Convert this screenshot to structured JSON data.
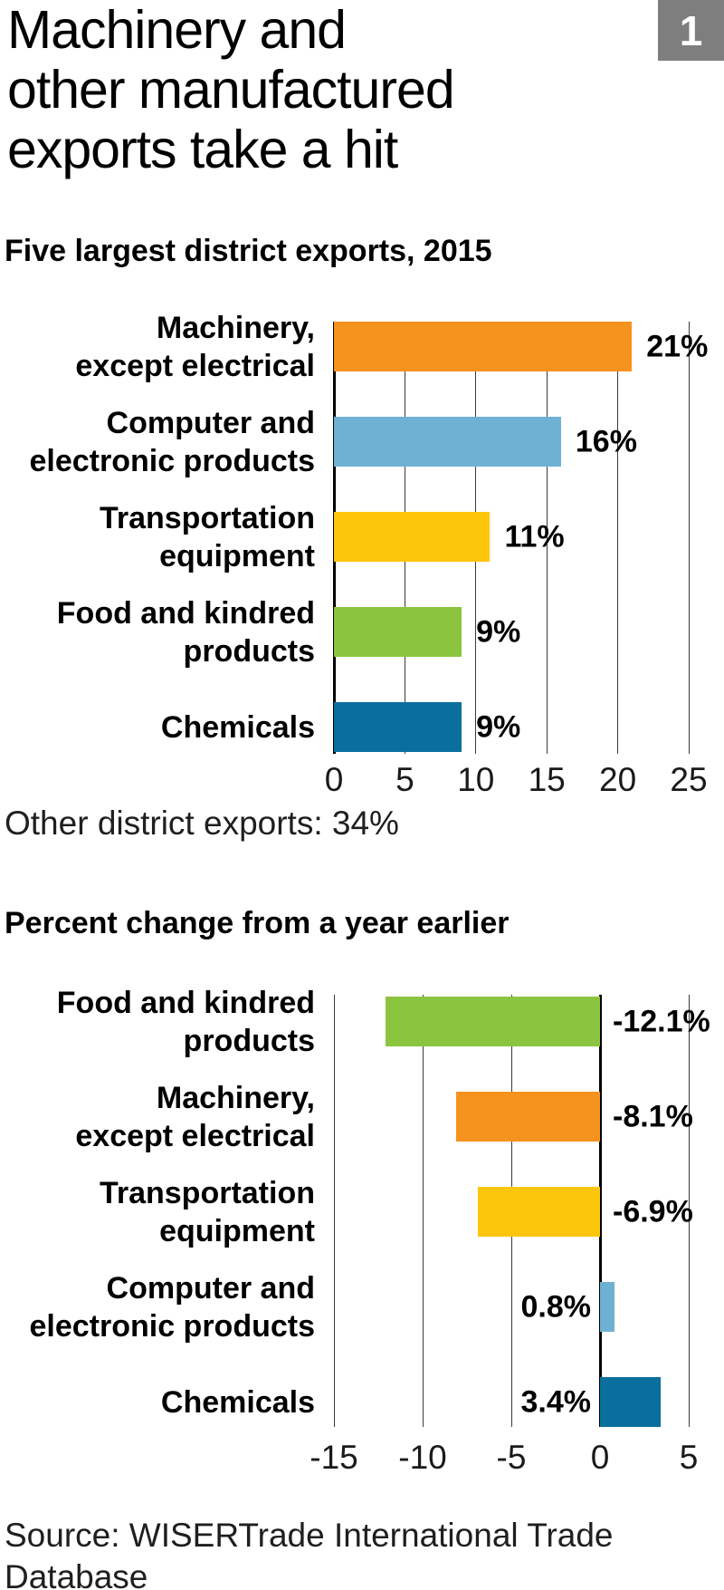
{
  "header": {
    "title": "Machinery and\nother manufactured\nexports take a hit",
    "badge": "1"
  },
  "chart_data": [
    {
      "type": "bar",
      "orientation": "horizontal",
      "title": "Five largest district exports, 2015",
      "categories": [
        "Machinery,\nexcept electrical",
        "Computer and\nelectronic products",
        "Transportation\nequipment",
        "Food and kindred\nproducts",
        "Chemicals"
      ],
      "values": [
        21,
        16,
        11,
        9,
        9
      ],
      "value_labels": [
        "21%",
        "16%",
        "11%",
        "9%",
        "9%"
      ],
      "colors": [
        "#f6921e",
        "#6fb1d3",
        "#fec60b",
        "#8bc540",
        "#0b6f9d"
      ],
      "xlim": [
        0,
        25
      ],
      "xticks": [
        0,
        5,
        10,
        15,
        20,
        25
      ],
      "xtick_labels": [
        "0",
        "5",
        "10",
        "15",
        "20",
        "25"
      ],
      "grid": "vertical",
      "note": "Other district exports: 34%"
    },
    {
      "type": "bar",
      "orientation": "horizontal",
      "title": "Percent change from a year earlier",
      "categories": [
        "Food and kindred\nproducts",
        "Machinery,\nexcept electrical",
        "Transportation\nequipment",
        "Computer and\nelectronic products",
        "Chemicals"
      ],
      "values": [
        -12.1,
        -8.1,
        -6.9,
        0.8,
        3.4
      ],
      "value_labels": [
        "-12.1%",
        "-8.1%",
        "-6.9%",
        "0.8%",
        "3.4%"
      ],
      "colors": [
        "#8bc540",
        "#f6921e",
        "#fec60b",
        "#6fb1d3",
        "#0b6f9d"
      ],
      "xlim": [
        -15,
        5
      ],
      "xticks": [
        -15,
        -10,
        -5,
        0,
        5
      ],
      "xtick_labels": [
        "-15",
        "-10",
        "-5",
        "0",
        "5"
      ],
      "grid": "vertical"
    }
  ],
  "footer": {
    "source": "Source: WISERTrade International Trade\nDatabase"
  }
}
